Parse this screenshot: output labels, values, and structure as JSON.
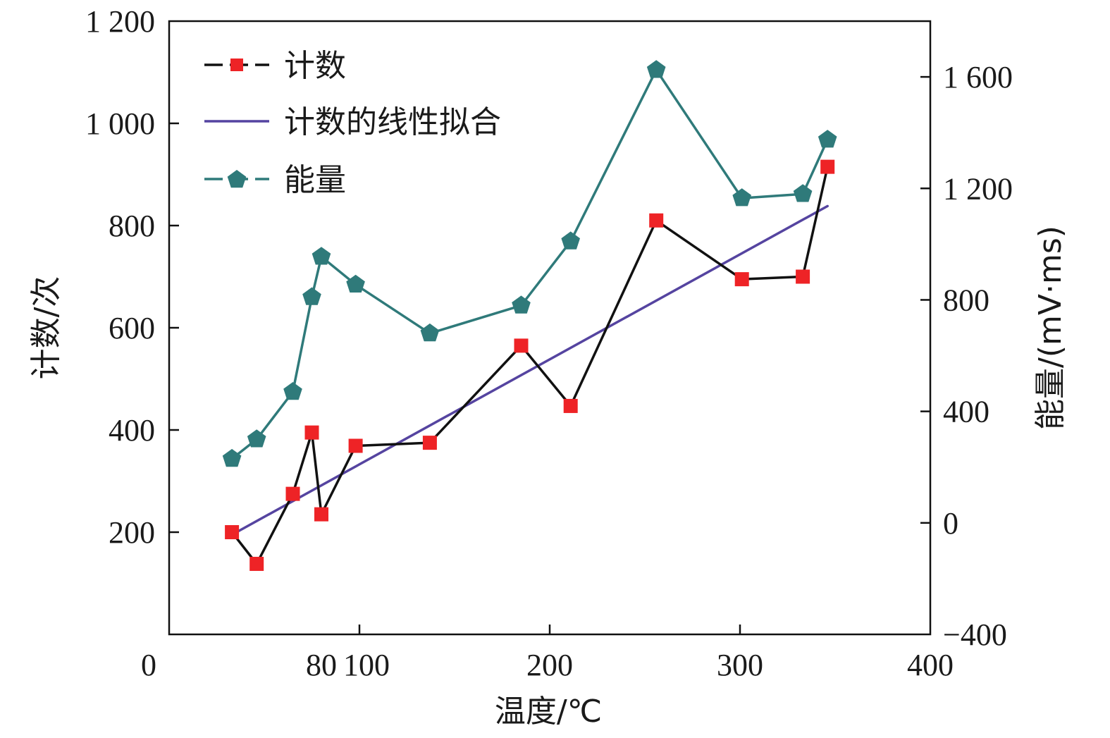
{
  "chart_data": {
    "type": "line",
    "title": "",
    "xlabel": "温度/℃",
    "ylabel": "计数/次",
    "y2label": "能量/(mV·ms)",
    "xlim": [
      0,
      400
    ],
    "ylim": [
      0,
      1200
    ],
    "y2lim": [
      -400,
      1800
    ],
    "x_ticks": [
      "0",
      "100",
      "200",
      "300",
      "400"
    ],
    "x_extra_tick": {
      "label": "80",
      "color": "#3d8080"
    },
    "y_ticks": [
      "200",
      "400",
      "600",
      "800",
      "1 000",
      "1 200"
    ],
    "y2_ticks": [
      "−400",
      "0",
      "400",
      "800",
      "1 200",
      "1 600"
    ],
    "grid": false,
    "legend_position": "top-left",
    "series": [
      {
        "name": "计数",
        "axis": "left",
        "marker": "square",
        "line_color": "#111111",
        "marker_color": "#ee2326",
        "line_style": "solid",
        "points": [
          [
            33,
            200
          ],
          [
            46,
            138
          ],
          [
            65,
            275
          ],
          [
            75,
            395
          ],
          [
            80,
            235
          ],
          [
            98,
            369
          ],
          [
            137,
            375
          ],
          [
            185,
            565
          ],
          [
            211,
            447
          ],
          [
            256,
            810
          ],
          [
            301,
            695
          ],
          [
            333,
            700
          ],
          [
            346,
            915
          ]
        ]
      },
      {
        "name": "计数的线性拟合",
        "axis": "left",
        "marker": "none",
        "line_color": "#5544a0",
        "line_style": "solid",
        "points": [
          [
            33,
            195
          ],
          [
            346,
            838
          ]
        ]
      },
      {
        "name": "能量",
        "axis": "right",
        "marker": "pentagon",
        "line_color": "#2f7a7a",
        "marker_color": "#2f7a7a",
        "line_style": "solid",
        "points": [
          [
            33,
            230
          ],
          [
            46,
            300
          ],
          [
            65,
            470
          ],
          [
            75,
            810
          ],
          [
            80,
            955
          ],
          [
            98,
            855
          ],
          [
            137,
            680
          ],
          [
            185,
            780
          ],
          [
            211,
            1010
          ],
          [
            256,
            1625
          ],
          [
            301,
            1165
          ],
          [
            333,
            1180
          ],
          [
            346,
            1375
          ]
        ]
      }
    ]
  }
}
